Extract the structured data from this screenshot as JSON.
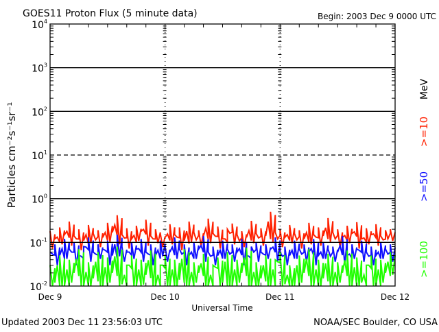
{
  "chart_data": {
    "type": "line",
    "title": "GOES11 Proton Flux (5 minute data)",
    "begin_label": "Begin: 2003 Dec 9 0000 UTC",
    "xlabel": "Universal Time",
    "ylabel": "Particles cm⁻²s⁻¹sr⁻¹",
    "y_scale": "log",
    "ylim": [
      0.01,
      10000
    ],
    "y_ticks": [
      {
        "base": "10",
        "exp": "4"
      },
      {
        "base": "10",
        "exp": "3"
      },
      {
        "base": "10",
        "exp": "2"
      },
      {
        "base": "10",
        "exp": "1"
      },
      {
        "base": "10",
        "exp": "0"
      },
      {
        "base": "10",
        "exp": "-1"
      },
      {
        "base": "10",
        "exp": "-2"
      }
    ],
    "x_unit": "hours since 2003 Dec 9 0000 UTC",
    "xlim": [
      0,
      72
    ],
    "x_ticks": [
      "Dec 9",
      "Dec 10",
      "Dec 11",
      "Dec 12"
    ],
    "reference_lines": [
      {
        "value": 1000,
        "style": "solid"
      },
      {
        "value": 100,
        "style": "solid"
      },
      {
        "value": 10,
        "style": "dashed"
      },
      {
        "value": 1,
        "style": "solid"
      },
      {
        "value": 0.1,
        "style": "solid"
      }
    ],
    "legend_unit": "MeV",
    "series": [
      {
        "name": ">=10",
        "color": "#ff2000",
        "values": [
          0.18,
          0.12,
          0.22,
          0.15,
          0.3,
          0.14,
          0.2,
          0.11,
          0.25,
          0.16,
          0.19,
          0.13,
          0.28,
          0.17,
          0.42,
          0.15,
          0.21,
          0.12,
          0.24,
          0.18,
          0.33,
          0.14,
          0.2,
          0.16,
          0.13,
          0.26,
          0.15,
          0.22,
          0.11,
          0.3,
          0.17,
          0.19,
          0.14,
          0.35,
          0.16,
          0.23,
          0.12,
          0.2,
          0.27,
          0.15,
          0.18,
          0.13,
          0.31,
          0.16,
          0.21,
          0.14,
          0.5,
          0.17,
          0.2,
          0.13,
          0.25,
          0.16,
          0.19,
          0.12,
          0.28,
          0.15,
          0.22,
          0.14,
          0.36,
          0.17,
          0.2,
          0.13,
          0.24,
          0.16,
          0.29,
          0.12,
          0.21,
          0.15,
          0.26,
          0.14,
          0.19,
          0.2
        ]
      },
      {
        "name": ">=50",
        "color": "#1010ff",
        "values": [
          0.06,
          0.09,
          0.05,
          0.12,
          0.07,
          0.1,
          0.05,
          0.08,
          0.13,
          0.06,
          0.09,
          0.07,
          0.11,
          0.05,
          0.15,
          0.08,
          0.06,
          0.1,
          0.07,
          0.12,
          0.06,
          0.09,
          0.05,
          0.11,
          0.08,
          0.06,
          0.13,
          0.07,
          0.09,
          0.05,
          0.1,
          0.07,
          0.14,
          0.06,
          0.08,
          0.05,
          0.11,
          0.07,
          0.09,
          0.06,
          0.12,
          0.05,
          0.08,
          0.1,
          0.06,
          0.09,
          0.07,
          0.13,
          0.06,
          0.08,
          0.05,
          0.11,
          0.07,
          0.09,
          0.06,
          0.12,
          0.05,
          0.1,
          0.07,
          0.08,
          0.06,
          0.14,
          0.05,
          0.09,
          0.07,
          0.11,
          0.06,
          0.08,
          0.05,
          0.1,
          0.07,
          0.09
        ]
      },
      {
        "name": ">=100",
        "color": "#20ff00",
        "values": [
          0.03,
          0.012,
          0.05,
          0.009,
          0.04,
          0.02,
          0.07,
          0.01,
          0.035,
          0.015,
          0.06,
          0.009,
          0.045,
          0.02,
          0.08,
          0.011,
          0.03,
          0.05,
          0.009,
          0.04,
          0.018,
          0.065,
          0.01,
          0.03,
          0.05,
          0.009,
          0.04,
          0.014,
          0.07,
          0.01,
          0.035,
          0.02,
          0.055,
          0.009,
          0.03,
          0.045,
          0.012,
          0.06,
          0.01,
          0.04,
          0.02,
          0.075,
          0.009,
          0.035,
          0.015,
          0.05,
          0.01,
          0.04,
          0.06,
          0.011,
          0.03,
          0.009,
          0.05,
          0.02,
          0.07,
          0.01,
          0.04,
          0.015,
          0.055,
          0.009,
          0.035,
          0.02,
          0.065,
          0.01,
          0.045,
          0.012,
          0.03,
          0.05,
          0.009,
          0.04,
          0.02,
          0.06
        ]
      }
    ]
  },
  "footer": {
    "updated": "Updated 2003 Dec 11 23:56:03 UTC",
    "source": "NOAA/SEC Boulder, CO USA"
  }
}
